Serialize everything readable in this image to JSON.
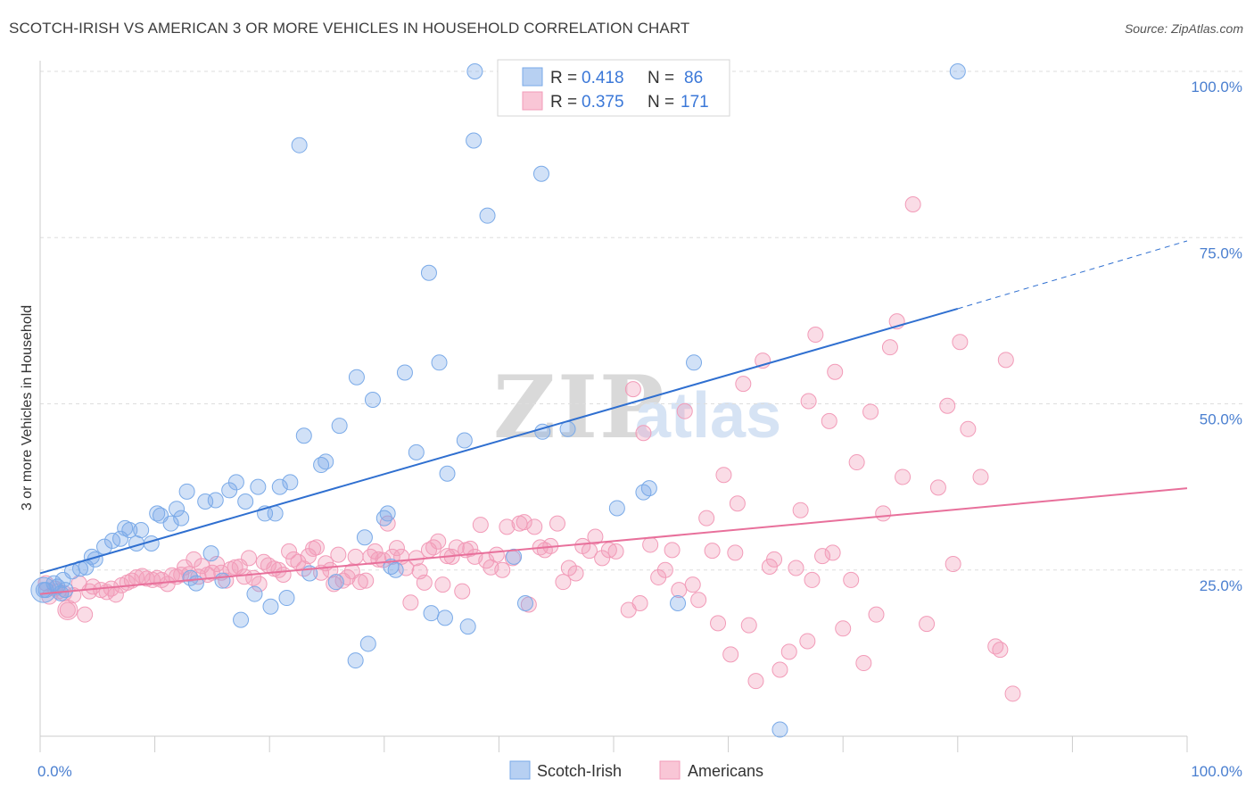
{
  "title": "SCOTCH-IRISH VS AMERICAN 3 OR MORE VEHICLES IN HOUSEHOLD CORRELATION CHART",
  "source": "Source: ZipAtlas.com",
  "watermark": {
    "part1": "ZIP",
    "part2": "atlas"
  },
  "legend_top": [
    {
      "r_label": "R =",
      "r_value": "0.418",
      "n_label": "N =",
      "n_value": "86"
    },
    {
      "r_label": "R =",
      "r_value": "0.375",
      "n_label": "N =",
      "n_value": "171"
    }
  ],
  "legend_bottom": [
    "Scotch-Irish",
    "Americans"
  ],
  "chart_data": {
    "type": "scatter",
    "title": "SCOTCH-IRISH VS AMERICAN 3 OR MORE VEHICLES IN HOUSEHOLD CORRELATION CHART",
    "xlabel": "",
    "ylabel": "3 or more Vehicles in Household",
    "xlim": [
      0,
      100
    ],
    "ylim": [
      0,
      100
    ],
    "x_tick_labels": [
      "0.0%",
      "100.0%"
    ],
    "y_ticks": [
      25,
      50,
      75,
      100
    ],
    "y_tick_labels": [
      "25.0%",
      "50.0%",
      "75.0%",
      "100.0%"
    ],
    "grid": "horizontal dashed",
    "legend_position": "top-center",
    "colors": {
      "Scotch-Irish": "#7aaae8",
      "Americans": "#f29bb8",
      "Scotch-Irish-line": "#2f6fd0",
      "Americans-line": "#e8709b"
    },
    "series": [
      {
        "name": "Scotch-Irish",
        "R": 0.418,
        "N": 86,
        "trend": {
          "x0": 0,
          "y0": 24.5,
          "x1": 80,
          "y1": 64.3,
          "dashed_to_x": 100,
          "dashed_to_y": 74.5
        },
        "points": [
          [
            0.3,
            22
          ],
          [
            1.2,
            23
          ],
          [
            1.5,
            22.5
          ],
          [
            2,
            23.5
          ],
          [
            2.8,
            24.8
          ],
          [
            3.5,
            25.2
          ],
          [
            4,
            25.4
          ],
          [
            4.5,
            27
          ],
          [
            4.8,
            26.6
          ],
          [
            5.6,
            28.5
          ],
          [
            6.3,
            29.4
          ],
          [
            7,
            29.7
          ],
          [
            7.4,
            31.3
          ],
          [
            7.8,
            31
          ],
          [
            8.8,
            31
          ],
          [
            8.4,
            29
          ],
          [
            9.7,
            29
          ],
          [
            10.2,
            33.5
          ],
          [
            10.5,
            33.2
          ],
          [
            11.4,
            32
          ],
          [
            11.9,
            34.2
          ],
          [
            12.3,
            32.8
          ],
          [
            12.8,
            36.8
          ],
          [
            13.1,
            23.8
          ],
          [
            13.6,
            23
          ],
          [
            14.4,
            35.3
          ],
          [
            14.9,
            27.5
          ],
          [
            15.3,
            35.5
          ],
          [
            15.9,
            23.4
          ],
          [
            16.5,
            37
          ],
          [
            17.1,
            38.2
          ],
          [
            17.5,
            17.5
          ],
          [
            17.9,
            35.3
          ],
          [
            18.7,
            21.4
          ],
          [
            19,
            37.5
          ],
          [
            19.6,
            33.5
          ],
          [
            20.1,
            19.5
          ],
          [
            20.5,
            33.5
          ],
          [
            20.9,
            37.5
          ],
          [
            21.5,
            20.8
          ],
          [
            21.8,
            38.2
          ],
          [
            22.6,
            88.9
          ],
          [
            23,
            45.2
          ],
          [
            23.5,
            24.5
          ],
          [
            24.5,
            40.8
          ],
          [
            24.9,
            41.3
          ],
          [
            25.8,
            23.2
          ],
          [
            26.1,
            46.7
          ],
          [
            27.6,
            54
          ],
          [
            27.5,
            11.4
          ],
          [
            28.3,
            29.9
          ],
          [
            28.6,
            13.9
          ],
          [
            29,
            50.6
          ],
          [
            30,
            32.8
          ],
          [
            30.3,
            33.5
          ],
          [
            30.6,
            25.5
          ],
          [
            31,
            25
          ],
          [
            31.8,
            54.7
          ],
          [
            32.8,
            42.7
          ],
          [
            33.9,
            69.7
          ],
          [
            34.1,
            18.5
          ],
          [
            34.8,
            56.2
          ],
          [
            35.5,
            39.5
          ],
          [
            35.3,
            17.8
          ],
          [
            37,
            44.5
          ],
          [
            37.3,
            16.5
          ],
          [
            37.9,
            100
          ],
          [
            37.8,
            89.6
          ],
          [
            39,
            78.3
          ],
          [
            41.3,
            27
          ],
          [
            42.3,
            20
          ],
          [
            43.7,
            84.6
          ],
          [
            43.8,
            45.8
          ],
          [
            46,
            46.2
          ],
          [
            50.3,
            34.3
          ],
          [
            52.6,
            36.7
          ],
          [
            53.1,
            37.3
          ],
          [
            55.6,
            20
          ],
          [
            57,
            56.2
          ],
          [
            64.5,
            1
          ],
          [
            80,
            100
          ],
          [
            0.5,
            22
          ],
          [
            1.8,
            21.5
          ],
          [
            2.2,
            22
          ]
        ]
      },
      {
        "name": "Americans",
        "R": 0.375,
        "N": 171,
        "trend": {
          "x0": 0,
          "y0": 21.4,
          "x1": 100,
          "y1": 37.3
        },
        "points": [
          [
            0.5,
            23
          ],
          [
            0.8,
            21
          ],
          [
            1.3,
            22.2
          ],
          [
            1.6,
            21.8
          ],
          [
            2.1,
            21.5
          ],
          [
            2.4,
            19
          ],
          [
            2.9,
            21.2
          ],
          [
            3.4,
            23
          ],
          [
            3.9,
            18.3
          ],
          [
            4.3,
            21.8
          ],
          [
            4.6,
            22.5
          ],
          [
            5.3,
            22
          ],
          [
            5.8,
            21.7
          ],
          [
            6.2,
            22.2
          ],
          [
            6.6,
            21.3
          ],
          [
            7.1,
            22.7
          ],
          [
            7.6,
            23.1
          ],
          [
            8,
            23.4
          ],
          [
            8.4,
            23.9
          ],
          [
            8.9,
            24.1
          ],
          [
            9.3,
            23.7
          ],
          [
            9.8,
            23.5
          ],
          [
            10.2,
            23.8
          ],
          [
            10.6,
            23.5
          ],
          [
            11.1,
            22.9
          ],
          [
            11.5,
            24.2
          ],
          [
            11.9,
            24
          ],
          [
            12.3,
            24.3
          ],
          [
            12.6,
            25.4
          ],
          [
            13,
            24.4
          ],
          [
            13.4,
            26.6
          ],
          [
            13.8,
            24
          ],
          [
            14.1,
            25.6
          ],
          [
            14.6,
            24.3
          ],
          [
            15,
            24.6
          ],
          [
            15.4,
            25.9
          ],
          [
            15.8,
            24.6
          ],
          [
            16.2,
            23.4
          ],
          [
            16.6,
            25.1
          ],
          [
            17,
            25.4
          ],
          [
            17.4,
            25.5
          ],
          [
            17.8,
            24
          ],
          [
            18.2,
            26.8
          ],
          [
            18.6,
            23.8
          ],
          [
            19.1,
            22.9
          ],
          [
            19.5,
            26.2
          ],
          [
            19.9,
            25.7
          ],
          [
            20.4,
            25.2
          ],
          [
            20.8,
            25
          ],
          [
            21.2,
            24.3
          ],
          [
            21.7,
            27.8
          ],
          [
            22.1,
            26.6
          ],
          [
            22.5,
            26.2
          ],
          [
            23,
            25.2
          ],
          [
            23.4,
            27.1
          ],
          [
            23.8,
            28.2
          ],
          [
            24.1,
            28.4
          ],
          [
            24.5,
            24.6
          ],
          [
            24.9,
            26
          ],
          [
            25.3,
            25
          ],
          [
            25.6,
            22.9
          ],
          [
            26,
            27.3
          ],
          [
            26.4,
            23.4
          ],
          [
            26.8,
            23.9
          ],
          [
            27.2,
            24.8
          ],
          [
            27.5,
            27
          ],
          [
            27.9,
            23.2
          ],
          [
            28.4,
            23.4
          ],
          [
            28.8,
            27
          ],
          [
            29.2,
            27.8
          ],
          [
            29.5,
            26.6
          ],
          [
            29.9,
            26.5
          ],
          [
            30.3,
            32
          ],
          [
            30.7,
            27
          ],
          [
            31.1,
            28.3
          ],
          [
            31.5,
            27
          ],
          [
            31.9,
            25.3
          ],
          [
            32.3,
            20.1
          ],
          [
            32.8,
            26.8
          ],
          [
            33.1,
            24.8
          ],
          [
            33.5,
            23.1
          ],
          [
            33.9,
            28
          ],
          [
            34.3,
            28.4
          ],
          [
            34.7,
            29.3
          ],
          [
            35.1,
            22.8
          ],
          [
            35.5,
            27.1
          ],
          [
            35.9,
            27
          ],
          [
            36.3,
            28.4
          ],
          [
            36.8,
            21.8
          ],
          [
            37.1,
            28
          ],
          [
            37.5,
            28.2
          ],
          [
            37.9,
            27
          ],
          [
            38.4,
            31.8
          ],
          [
            38.9,
            26.4
          ],
          [
            39.3,
            25.4
          ],
          [
            39.8,
            27.3
          ],
          [
            40.3,
            25
          ],
          [
            40.7,
            31.5
          ],
          [
            41.2,
            26.8
          ],
          [
            41.8,
            32
          ],
          [
            42.2,
            32.2
          ],
          [
            42.6,
            19.8
          ],
          [
            43.1,
            31.5
          ],
          [
            43.6,
            28.4
          ],
          [
            44,
            28
          ],
          [
            44.5,
            28.6
          ],
          [
            45.1,
            32
          ],
          [
            45.6,
            23.2
          ],
          [
            46.1,
            25.3
          ],
          [
            46.7,
            24.5
          ],
          [
            47.3,
            28.6
          ],
          [
            47.9,
            27.9
          ],
          [
            48.4,
            30
          ],
          [
            49,
            26.8
          ],
          [
            49.6,
            28
          ],
          [
            50.2,
            27.8
          ],
          [
            51.3,
            19
          ],
          [
            51.7,
            52.2
          ],
          [
            52.3,
            20
          ],
          [
            52.6,
            45.6
          ],
          [
            53.2,
            28.8
          ],
          [
            53.9,
            23.9
          ],
          [
            54.5,
            25
          ],
          [
            55.1,
            28
          ],
          [
            55.7,
            22
          ],
          [
            56.2,
            48.9
          ],
          [
            56.9,
            22.8
          ],
          [
            57.4,
            20.5
          ],
          [
            58.1,
            32.8
          ],
          [
            58.6,
            27.9
          ],
          [
            59.1,
            17
          ],
          [
            59.6,
            39.3
          ],
          [
            60.2,
            12.3
          ],
          [
            60.8,
            35
          ],
          [
            61.3,
            53
          ],
          [
            61.8,
            16.7
          ],
          [
            62.4,
            8.3
          ],
          [
            63,
            56.5
          ],
          [
            63.6,
            25.5
          ],
          [
            64,
            26.6
          ],
          [
            64.5,
            10
          ],
          [
            65.3,
            12.7
          ],
          [
            65.9,
            25.3
          ],
          [
            66.3,
            34
          ],
          [
            67,
            50.4
          ],
          [
            67.6,
            60.4
          ],
          [
            68.2,
            27.1
          ],
          [
            68.8,
            47.4
          ],
          [
            69.3,
            54.8
          ],
          [
            70,
            16.2
          ],
          [
            70.7,
            23.5
          ],
          [
            71.2,
            41.2
          ],
          [
            71.8,
            11
          ],
          [
            72.4,
            48.8
          ],
          [
            72.9,
            18.3
          ],
          [
            73.5,
            33.5
          ],
          [
            74.1,
            58.5
          ],
          [
            74.7,
            62.4
          ],
          [
            75.2,
            39
          ],
          [
            76.1,
            80
          ],
          [
            77.3,
            16.9
          ],
          [
            78.3,
            37.4
          ],
          [
            79.1,
            49.7
          ],
          [
            79.6,
            25.9
          ],
          [
            80.2,
            59.3
          ],
          [
            80.9,
            46.2
          ],
          [
            82,
            39
          ],
          [
            83.3,
            13.5
          ],
          [
            83.7,
            13
          ],
          [
            84.2,
            56.6
          ],
          [
            84.8,
            6.4
          ],
          [
            69.1,
            27.6
          ],
          [
            67.3,
            23.5
          ],
          [
            66.9,
            14.3
          ],
          [
            60.6,
            27.6
          ]
        ]
      }
    ]
  }
}
